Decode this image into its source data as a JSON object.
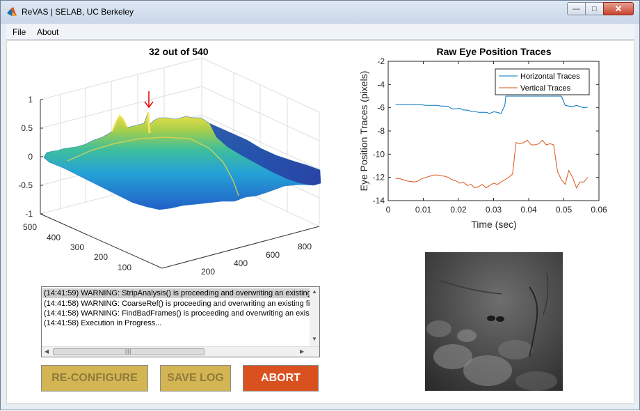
{
  "window": {
    "title": "ReVAS | SELAB, UC Berkeley",
    "icon": "matlab-icon",
    "controls": [
      "minimize",
      "maximize",
      "close"
    ]
  },
  "menu": {
    "file": "File",
    "about": "About"
  },
  "surface_plot": {
    "title": "32 out of 540",
    "z_ticks": [
      "1",
      "0.5",
      "0",
      "-0.5",
      "-1"
    ],
    "y_ticks": [
      "500",
      "400",
      "300",
      "200",
      "100"
    ],
    "x_ticks": [
      "200",
      "400",
      "600",
      "800"
    ],
    "peak_marker_color": "#e60000"
  },
  "log": {
    "lines": [
      "(14:41:59) WARNING: StripAnalysis() is proceeding and overwriting an existing",
      "(14:41:58) WARNING: CoarseRef() is proceeding and overwriting an existing fil",
      "(14:41:58) WARNING: FindBadFrames() is proceeding and overwriting an existi",
      "(14:41:58) Execution in Progress..."
    ],
    "selected_index": 0
  },
  "buttons": {
    "reconfigure": "RE-CONFIGURE",
    "save_log": "SAVE LOG",
    "abort": "ABORT",
    "reconfigure_enabled": false,
    "save_log_enabled": false,
    "abort_enabled": true
  },
  "chart_data": {
    "type": "line",
    "title": "Raw Eye Position Traces",
    "xlabel": "Time (sec)",
    "ylabel": "Eye Position Traces (pixels)",
    "xlim": [
      0,
      0.06
    ],
    "ylim": [
      -14,
      -2
    ],
    "x_ticks": [
      "0",
      "0.01",
      "0.02",
      "0.03",
      "0.04",
      "0.05",
      "0.06"
    ],
    "y_ticks": [
      "-2",
      "-4",
      "-6",
      "-8",
      "-10",
      "-12",
      "-14"
    ],
    "legend_position": "top-right",
    "series": [
      {
        "name": "Horizontal Traces",
        "color": "#0072bd",
        "x": [
          0.0021,
          0.0032,
          0.0043,
          0.0054,
          0.0064,
          0.0075,
          0.0086,
          0.0096,
          0.0107,
          0.0118,
          0.0129,
          0.0139,
          0.015,
          0.0161,
          0.0171,
          0.0182,
          0.0193,
          0.0204,
          0.0214,
          0.0225,
          0.0236,
          0.0246,
          0.0257,
          0.0268,
          0.0279,
          0.0289,
          0.03,
          0.0311,
          0.0321,
          0.0332,
          0.0335,
          0.0493,
          0.0504,
          0.0514,
          0.0525,
          0.0536,
          0.0546,
          0.0557,
          0.0568
        ],
        "y": [
          -5.7,
          -5.7,
          -5.75,
          -5.7,
          -5.7,
          -5.75,
          -5.7,
          -5.75,
          -5.8,
          -5.8,
          -5.8,
          -5.8,
          -5.85,
          -5.85,
          -5.9,
          -6.1,
          -6.1,
          -6.05,
          -6.2,
          -6.2,
          -6.3,
          -6.3,
          -6.4,
          -6.4,
          -6.4,
          -6.5,
          -6.35,
          -6.4,
          -6.5,
          -5.8,
          -5.0,
          -5.0,
          -5.8,
          -5.85,
          -5.9,
          -5.8,
          -5.9,
          -6.0,
          -5.95
        ]
      },
      {
        "name": "Vertical Traces",
        "color": "#d95319",
        "x": [
          0.0021,
          0.0032,
          0.0043,
          0.0054,
          0.0064,
          0.0075,
          0.0086,
          0.0096,
          0.0107,
          0.0118,
          0.0129,
          0.0139,
          0.015,
          0.0161,
          0.0171,
          0.0182,
          0.0193,
          0.0204,
          0.0214,
          0.0225,
          0.0236,
          0.0246,
          0.0257,
          0.0268,
          0.0279,
          0.0289,
          0.03,
          0.0311,
          0.0321,
          0.0332,
          0.0343,
          0.0354,
          0.0364,
          0.0375,
          0.0386,
          0.0396,
          0.0407,
          0.0418,
          0.0429,
          0.0439,
          0.045,
          0.0461,
          0.0471,
          0.0482,
          0.0493,
          0.0504,
          0.0514,
          0.0525,
          0.0536,
          0.0546,
          0.0557,
          0.0568
        ],
        "y": [
          -12.1,
          -12.1,
          -12.2,
          -12.3,
          -12.35,
          -12.4,
          -12.3,
          -12.1,
          -12.0,
          -11.9,
          -11.8,
          -11.8,
          -11.85,
          -11.9,
          -12.0,
          -12.2,
          -12.3,
          -12.5,
          -12.4,
          -12.7,
          -12.6,
          -12.9,
          -12.8,
          -12.6,
          -12.9,
          -12.7,
          -12.5,
          -12.6,
          -12.4,
          -12.2,
          -12.0,
          -11.7,
          -9.0,
          -9.1,
          -9.0,
          -8.8,
          -9.2,
          -9.2,
          -9.1,
          -8.8,
          -9.2,
          -9.1,
          -9.2,
          -11.5,
          -12.2,
          -12.6,
          -11.4,
          -12.0,
          -12.9,
          -12.4,
          -12.4,
          -12.0
        ]
      }
    ]
  },
  "retina_image": {
    "label": "retina-frame"
  }
}
